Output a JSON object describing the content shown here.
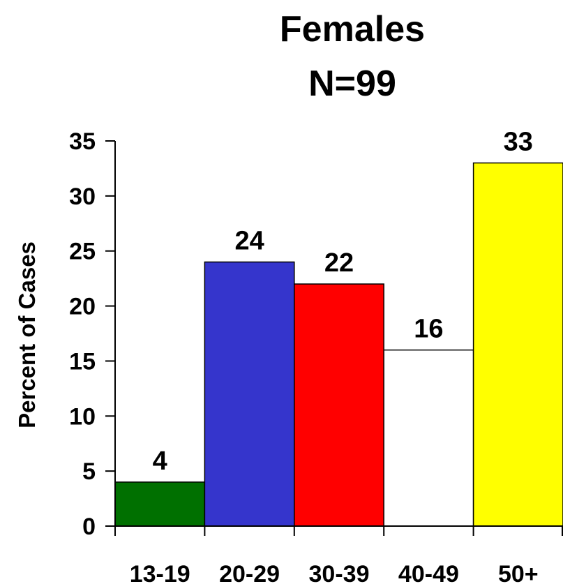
{
  "chart_data": {
    "type": "bar",
    "title": "Females",
    "subtitle": "N=99",
    "ylabel": "Percent of Cases",
    "xlabel": "",
    "categories": [
      "13-19",
      "20-29",
      "30-39",
      "40-49",
      "50+"
    ],
    "values": [
      4,
      24,
      22,
      16,
      33
    ],
    "data_labels": [
      "4",
      "24",
      "22",
      "16",
      "33"
    ],
    "colors": [
      "#007000",
      "#3535cc",
      "#ff0000",
      "#ffffff",
      "#ffff00"
    ],
    "ylim": [
      0,
      35
    ],
    "yticks": [
      "0",
      "5",
      "10",
      "15",
      "20",
      "25",
      "30",
      "35"
    ],
    "grid": false,
    "legend": "none"
  }
}
